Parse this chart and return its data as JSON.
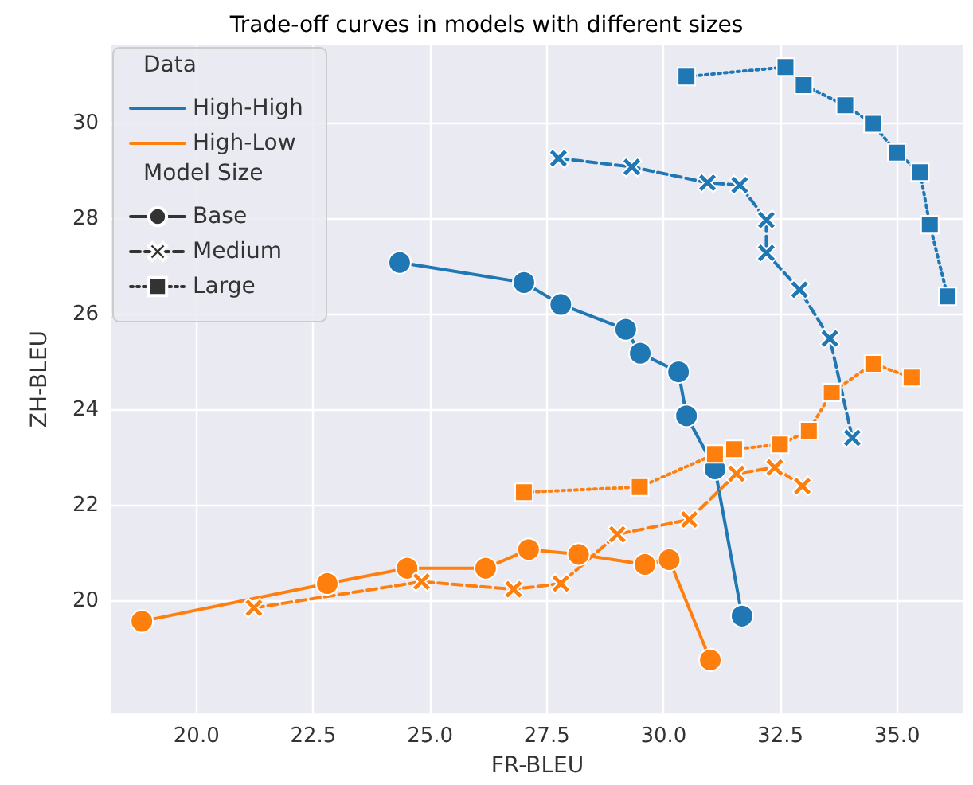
{
  "chart_data": {
    "type": "line",
    "title": "Trade-off curves in models with different sizes",
    "xlabel": "FR-BLEU",
    "ylabel": "ZH-BLEU",
    "legend_title": "Data",
    "annotations": [
      "Model Size"
    ],
    "xlim": [
      18.18,
      36.42
    ],
    "ylim": [
      17.65,
      31.65
    ],
    "xticks": [
      {
        "value": 20,
        "label": "20.0"
      },
      {
        "value": 22.5,
        "label": "22.5"
      },
      {
        "value": 25,
        "label": "25.0"
      },
      {
        "value": 27.5,
        "label": "27.5"
      },
      {
        "value": 30,
        "label": "30.0"
      },
      {
        "value": 32.5,
        "label": "32.5"
      },
      {
        "value": 35,
        "label": "35.0"
      }
    ],
    "yticks": [
      20,
      22,
      24,
      26,
      28,
      30
    ],
    "grid": true,
    "legend": "top left",
    "series": [
      {
        "color": "#1f77b4",
        "marker": "circle",
        "line_style": "solid",
        "x": [
          24.35,
          27.01,
          27.8,
          29.19,
          29.5,
          30.32,
          30.49,
          31.1,
          31.68
        ],
        "values": [
          27.09,
          26.67,
          26.21,
          25.69,
          25.19,
          24.8,
          23.88,
          22.77,
          19.69
        ]
      },
      {
        "color": "#1f77b4",
        "marker": "cross",
        "line_style": "dashed",
        "x": [
          27.75,
          29.32,
          30.94,
          31.63,
          32.2,
          32.2,
          32.91,
          33.56,
          34.04
        ],
        "values": [
          29.27,
          29.09,
          28.76,
          28.71,
          27.98,
          27.29,
          26.52,
          25.5,
          23.42
        ]
      },
      {
        "color": "#1f77b4",
        "marker": "square",
        "line_style": "dotted",
        "x": [
          30.49,
          32.61,
          33.0,
          33.89,
          34.48,
          34.99,
          35.49,
          35.7,
          36.08
        ],
        "values": [
          30.98,
          31.18,
          30.8,
          30.38,
          29.99,
          29.39,
          28.98,
          27.88,
          26.38
        ]
      },
      {
        "color": "#ff7f0e",
        "marker": "circle",
        "line_style": "solid",
        "x": [
          18.83,
          22.8,
          24.51,
          26.19,
          27.11,
          28.18,
          29.6,
          30.12,
          31.0
        ],
        "values": [
          19.58,
          20.37,
          20.69,
          20.69,
          21.08,
          20.98,
          20.77,
          20.87,
          18.77
        ]
      },
      {
        "color": "#ff7f0e",
        "marker": "cross",
        "line_style": "dashed",
        "x": [
          21.23,
          24.82,
          26.79,
          27.8,
          29.01,
          30.55,
          31.56,
          32.38,
          32.97
        ],
        "values": [
          19.86,
          20.41,
          20.25,
          20.37,
          21.4,
          21.71,
          22.67,
          22.8,
          22.41
        ]
      },
      {
        "color": "#ff7f0e",
        "marker": "square",
        "line_style": "dotted",
        "x": [
          27.01,
          29.49,
          31.1,
          31.51,
          32.49,
          33.11,
          33.6,
          34.49,
          35.31
        ],
        "values": [
          22.28,
          22.39,
          23.08,
          23.18,
          23.28,
          23.57,
          24.37,
          24.97,
          24.68
        ]
      },
      {
        "name": "High-High",
        "color": "#1f77b4"
      },
      {
        "name": "High-Low",
        "color": "#ff7f0e"
      },
      {
        "name": "Base",
        "color": "#333333",
        "marker": "circle",
        "line_style": "solid"
      },
      {
        "name": "Medium",
        "color": "#333333",
        "marker": "cross",
        "line_style": "dashed"
      },
      {
        "name": "Large",
        "color": "#333333",
        "marker": "square",
        "line_style": "dotted"
      }
    ]
  }
}
